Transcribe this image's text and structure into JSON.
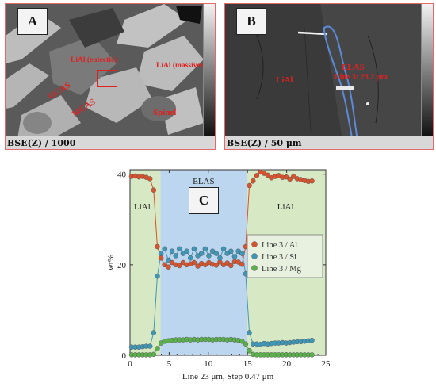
{
  "panel_a": {
    "letter": "A",
    "scale_text": "BSE(Z) / 1000",
    "labels": {
      "liai_eutectic": "LiAl (eutectic)",
      "liai_massive": "LiAl (massive)",
      "gcas": "GCAS",
      "mcas": "MCAS",
      "spinel": "Spinel"
    }
  },
  "panel_b": {
    "letter": "B",
    "scale_text": "BSE(Z) / 50 μm",
    "labels": {
      "liai": "LiAl",
      "elas": "ELAS",
      "line": "Line 3: 23.2 μm"
    }
  },
  "panel_c": {
    "letter": "C",
    "region_labels": {
      "left": "LiAl",
      "middle": "ELAS",
      "right": "LiAl"
    }
  },
  "colors": {
    "al": "#d9522b",
    "si": "#3f97b8",
    "mg": "#5ab04a",
    "elas_band": "#bcd6ef",
    "liai_band": "#d6e8c4",
    "red_label": "#e02020",
    "elas_text": "#4a86c8"
  },
  "chart_data": {
    "type": "scatter",
    "xlabel": "Line 23 μm, Step 0.47 μm",
    "ylabel": "wt%",
    "xlim": [
      0,
      25
    ],
    "ylim": [
      0,
      41
    ],
    "xticks": [
      "0",
      "5",
      "10",
      "15",
      "20",
      "25"
    ],
    "yticks": [
      "0",
      "20",
      "40"
    ],
    "regions": [
      {
        "label": "LiAl",
        "x0": 0,
        "x1": 3.9
      },
      {
        "label": "ELAS",
        "x0": 3.9,
        "x1": 14.9
      },
      {
        "label": "LiAl",
        "x0": 14.9,
        "x1": 25
      }
    ],
    "series": [
      {
        "name": "Line 3 / Al",
        "x": [
          0.2,
          0.67,
          1.14,
          1.61,
          2.08,
          2.55,
          3.02,
          3.49,
          3.96,
          4.43,
          4.9,
          5.37,
          5.84,
          6.31,
          6.78,
          7.25,
          7.72,
          8.19,
          8.66,
          9.13,
          9.6,
          10.07,
          10.54,
          11.01,
          11.48,
          11.95,
          12.42,
          12.89,
          13.36,
          13.83,
          14.3,
          14.77,
          15.24,
          15.71,
          16.18,
          16.65,
          17.12,
          17.59,
          18.06,
          18.53,
          19.0,
          19.47,
          19.94,
          20.41,
          20.88,
          21.35,
          21.82,
          22.29,
          22.76,
          23.23
        ],
        "y": [
          39.5,
          39.6,
          39.4,
          39.5,
          39.3,
          39.0,
          36.5,
          24.0,
          21.5,
          20.0,
          19.5,
          20.5,
          20.0,
          19.8,
          20.5,
          20.0,
          20.2,
          20.5,
          19.7,
          20.3,
          20.0,
          20.5,
          20.1,
          19.9,
          20.6,
          20.0,
          20.4,
          19.8,
          20.7,
          20.6,
          20.1,
          24.0,
          37.5,
          38.5,
          39.7,
          40.5,
          40.2,
          39.8,
          39.2,
          39.5,
          39.7,
          39.3,
          39.4,
          38.9,
          39.5,
          39.0,
          38.8,
          38.6,
          38.4,
          38.5
        ]
      },
      {
        "name": "Line 3 / Si",
        "x": [
          0.2,
          0.67,
          1.14,
          1.61,
          2.08,
          2.55,
          3.02,
          3.49,
          3.96,
          4.43,
          4.9,
          5.37,
          5.84,
          6.31,
          6.78,
          7.25,
          7.72,
          8.19,
          8.66,
          9.13,
          9.6,
          10.07,
          10.54,
          11.01,
          11.48,
          11.95,
          12.42,
          12.89,
          13.36,
          13.83,
          14.3,
          14.77,
          15.24,
          15.71,
          16.18,
          16.65,
          17.12,
          17.59,
          18.06,
          18.53,
          19.0,
          19.47,
          19.94,
          20.41,
          20.88,
          21.35,
          21.82,
          22.29,
          22.76,
          23.23
        ],
        "y": [
          1.8,
          1.8,
          1.8,
          1.9,
          2.0,
          2.0,
          5.0,
          17.5,
          22.5,
          23.5,
          21.0,
          23.0,
          22.0,
          23.5,
          22.5,
          23.0,
          21.5,
          23.5,
          22.0,
          22.5,
          23.5,
          22.0,
          23.0,
          22.5,
          21.5,
          23.5,
          22.5,
          23.0,
          21.8,
          23.0,
          22.5,
          18.0,
          5.0,
          2.5,
          2.5,
          2.4,
          2.6,
          2.5,
          2.6,
          2.7,
          2.7,
          2.8,
          2.7,
          2.8,
          2.9,
          3.0,
          3.0,
          3.1,
          3.2,
          3.3
        ]
      },
      {
        "name": "Line 3 / Mg",
        "x": [
          0.2,
          0.67,
          1.14,
          1.61,
          2.08,
          2.55,
          3.02,
          3.49,
          3.96,
          4.43,
          4.9,
          5.37,
          5.84,
          6.31,
          6.78,
          7.25,
          7.72,
          8.19,
          8.66,
          9.13,
          9.6,
          10.07,
          10.54,
          11.01,
          11.48,
          11.95,
          12.42,
          12.89,
          13.36,
          13.83,
          14.3,
          14.77,
          15.24,
          15.71,
          16.18,
          16.65,
          17.12,
          17.59,
          18.06,
          18.53,
          19.0,
          19.47,
          19.94,
          20.41,
          20.88,
          21.35,
          21.82,
          22.29,
          22.76,
          23.23
        ],
        "y": [
          0.1,
          0.1,
          0.1,
          0.1,
          0.1,
          0.1,
          0.2,
          1.5,
          2.7,
          3.1,
          3.2,
          3.3,
          3.4,
          3.4,
          3.4,
          3.5,
          3.4,
          3.5,
          3.4,
          3.5,
          3.5,
          3.5,
          3.4,
          3.5,
          3.5,
          3.5,
          3.4,
          3.5,
          3.4,
          3.3,
          3.1,
          2.5,
          1.0,
          0.2,
          0.1,
          0.1,
          0.1,
          0.1,
          0.1,
          0.1,
          0.1,
          0.1,
          0.1,
          0.1,
          0.1,
          0.1,
          0.1,
          0.1,
          0.1,
          0.1
        ]
      }
    ],
    "legend_position": "right",
    "grid": false
  }
}
